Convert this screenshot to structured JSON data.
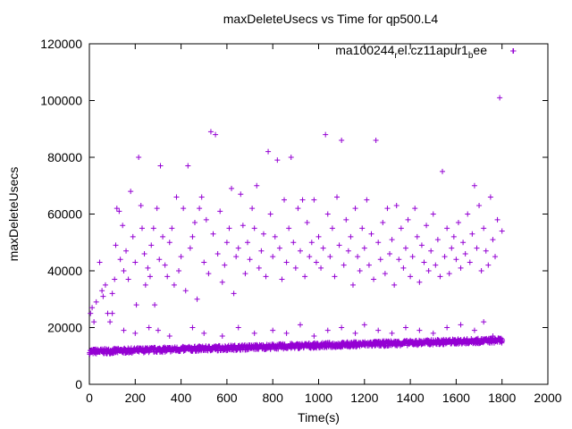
{
  "chart_data": {
    "type": "scatter",
    "title": "maxDeleteUsecs vs Time for qp500.L4",
    "xlabel": "Time(s)",
    "ylabel": "maxDeleteUsecs",
    "xlim": [
      0,
      2000
    ],
    "ylim": [
      0,
      120000
    ],
    "x_ticks": [
      "0",
      "200",
      "400",
      "600",
      "800",
      "1000",
      "1200",
      "1400",
      "1600",
      "1800",
      "2000"
    ],
    "y_ticks": [
      "0",
      "20000",
      "40000",
      "60000",
      "80000",
      "100000",
      "120000"
    ],
    "grid": false,
    "legend_position": "top-right",
    "legend_label": {
      "main": "ma100244",
      "sub1": "r",
      "mid": "el.cz11apur1",
      "sub2": "b",
      "end": "ee"
    },
    "marker": "plus",
    "color": "#9400d3",
    "baseline_band": {
      "description_x": [
        0,
        1800
      ],
      "y_start": 11500,
      "y_end": 15500
    },
    "outliers": [
      [
        5,
        25000
      ],
      [
        12,
        27000
      ],
      [
        20,
        22000
      ],
      [
        30,
        29000
      ],
      [
        45,
        43000
      ],
      [
        55,
        33000
      ],
      [
        60,
        31000
      ],
      [
        70,
        35000
      ],
      [
        80,
        25000
      ],
      [
        90,
        22000
      ],
      [
        100,
        32000
      ],
      [
        110,
        37000
      ],
      [
        115,
        49000
      ],
      [
        120,
        62000
      ],
      [
        130,
        61000
      ],
      [
        135,
        44000
      ],
      [
        145,
        56000
      ],
      [
        150,
        40000
      ],
      [
        160,
        47000
      ],
      [
        170,
        37000
      ],
      [
        180,
        68000
      ],
      [
        190,
        52000
      ],
      [
        200,
        43000
      ],
      [
        205,
        28000
      ],
      [
        215,
        80000
      ],
      [
        225,
        63000
      ],
      [
        230,
        55000
      ],
      [
        240,
        46000
      ],
      [
        245,
        35000
      ],
      [
        255,
        41000
      ],
      [
        265,
        38000
      ],
      [
        270,
        49000
      ],
      [
        280,
        55000
      ],
      [
        285,
        28000
      ],
      [
        295,
        62000
      ],
      [
        305,
        44000
      ],
      [
        310,
        77000
      ],
      [
        320,
        52000
      ],
      [
        330,
        42000
      ],
      [
        340,
        38000
      ],
      [
        350,
        50000
      ],
      [
        360,
        55000
      ],
      [
        370,
        35000
      ],
      [
        380,
        66000
      ],
      [
        390,
        40000
      ],
      [
        400,
        45000
      ],
      [
        410,
        62000
      ],
      [
        420,
        33000
      ],
      [
        430,
        77000
      ],
      [
        440,
        48000
      ],
      [
        450,
        52000
      ],
      [
        460,
        57000
      ],
      [
        470,
        30000
      ],
      [
        480,
        62000
      ],
      [
        490,
        66000
      ],
      [
        500,
        43000
      ],
      [
        510,
        58000
      ],
      [
        520,
        39000
      ],
      [
        530,
        89000
      ],
      [
        540,
        53000
      ],
      [
        550,
        88000
      ],
      [
        560,
        46000
      ],
      [
        570,
        61000
      ],
      [
        580,
        36000
      ],
      [
        590,
        42000
      ],
      [
        600,
        50000
      ],
      [
        610,
        55000
      ],
      [
        620,
        69000
      ],
      [
        630,
        32000
      ],
      [
        640,
        45000
      ],
      [
        650,
        48000
      ],
      [
        660,
        67000
      ],
      [
        670,
        56000
      ],
      [
        680,
        39000
      ],
      [
        690,
        50000
      ],
      [
        700,
        44000
      ],
      [
        710,
        62000
      ],
      [
        720,
        55000
      ],
      [
        730,
        70000
      ],
      [
        740,
        41000
      ],
      [
        750,
        47000
      ],
      [
        760,
        53000
      ],
      [
        770,
        38000
      ],
      [
        780,
        82000
      ],
      [
        790,
        60000
      ],
      [
        800,
        45000
      ],
      [
        810,
        52000
      ],
      [
        820,
        79000
      ],
      [
        830,
        48000
      ],
      [
        840,
        37000
      ],
      [
        850,
        65000
      ],
      [
        860,
        43000
      ],
      [
        870,
        55000
      ],
      [
        880,
        80000
      ],
      [
        890,
        50000
      ],
      [
        900,
        41000
      ],
      [
        910,
        62000
      ],
      [
        920,
        47000
      ],
      [
        930,
        65000
      ],
      [
        940,
        38000
      ],
      [
        950,
        57000
      ],
      [
        960,
        45000
      ],
      [
        970,
        50000
      ],
      [
        980,
        65000
      ],
      [
        990,
        43000
      ],
      [
        1000,
        52000
      ],
      [
        1010,
        41000
      ],
      [
        1020,
        48000
      ],
      [
        1030,
        88000
      ],
      [
        1040,
        60000
      ],
      [
        1050,
        45000
      ],
      [
        1060,
        55000
      ],
      [
        1070,
        38000
      ],
      [
        1080,
        66000
      ],
      [
        1090,
        49000
      ],
      [
        1100,
        86000
      ],
      [
        1110,
        42000
      ],
      [
        1120,
        58000
      ],
      [
        1130,
        47000
      ],
      [
        1140,
        52000
      ],
      [
        1150,
        35000
      ],
      [
        1160,
        62000
      ],
      [
        1170,
        45000
      ],
      [
        1180,
        40000
      ],
      [
        1190,
        55000
      ],
      [
        1200,
        48000
      ],
      [
        1210,
        65000
      ],
      [
        1220,
        42000
      ],
      [
        1230,
        53000
      ],
      [
        1240,
        37000
      ],
      [
        1250,
        86000
      ],
      [
        1260,
        50000
      ],
      [
        1270,
        44000
      ],
      [
        1280,
        57000
      ],
      [
        1290,
        39000
      ],
      [
        1300,
        62000
      ],
      [
        1310,
        46000
      ],
      [
        1320,
        51000
      ],
      [
        1330,
        35000
      ],
      [
        1340,
        63000
      ],
      [
        1350,
        44000
      ],
      [
        1360,
        55000
      ],
      [
        1370,
        41000
      ],
      [
        1380,
        48000
      ],
      [
        1390,
        58000
      ],
      [
        1400,
        38000
      ],
      [
        1410,
        45000
      ],
      [
        1420,
        62000
      ],
      [
        1430,
        52000
      ],
      [
        1440,
        36000
      ],
      [
        1450,
        49000
      ],
      [
        1460,
        43000
      ],
      [
        1470,
        56000
      ],
      [
        1480,
        40000
      ],
      [
        1490,
        47000
      ],
      [
        1500,
        60000
      ],
      [
        1510,
        42000
      ],
      [
        1520,
        51000
      ],
      [
        1530,
        38000
      ],
      [
        1540,
        75000
      ],
      [
        1550,
        45000
      ],
      [
        1560,
        55000
      ],
      [
        1570,
        39000
      ],
      [
        1580,
        48000
      ],
      [
        1590,
        52000
      ],
      [
        1600,
        44000
      ],
      [
        1610,
        57000
      ],
      [
        1620,
        41000
      ],
      [
        1630,
        50000
      ],
      [
        1640,
        46000
      ],
      [
        1650,
        60000
      ],
      [
        1660,
        43000
      ],
      [
        1670,
        53000
      ],
      [
        1680,
        70000
      ],
      [
        1690,
        48000
      ],
      [
        1700,
        63000
      ],
      [
        1710,
        40000
      ],
      [
        1720,
        55000
      ],
      [
        1730,
        47000
      ],
      [
        1740,
        42000
      ],
      [
        1750,
        66000
      ],
      [
        1760,
        51000
      ],
      [
        1770,
        45000
      ],
      [
        1780,
        58000
      ],
      [
        1790,
        101000
      ],
      [
        1800,
        54000
      ],
      [
        1850,
        117500
      ]
    ],
    "low_outliers": [
      [
        100,
        25000
      ],
      [
        150,
        19000
      ],
      [
        200,
        18000
      ],
      [
        260,
        20000
      ],
      [
        300,
        19000
      ],
      [
        350,
        17000
      ],
      [
        450,
        20000
      ],
      [
        500,
        18000
      ],
      [
        580,
        17000
      ],
      [
        650,
        20000
      ],
      [
        720,
        18000
      ],
      [
        800,
        19000
      ],
      [
        860,
        18000
      ],
      [
        920,
        21000
      ],
      [
        980,
        17000
      ],
      [
        1040,
        19000
      ],
      [
        1100,
        20000
      ],
      [
        1160,
        18000
      ],
      [
        1200,
        21000
      ],
      [
        1260,
        19000
      ],
      [
        1320,
        18000
      ],
      [
        1380,
        20000
      ],
      [
        1440,
        19000
      ],
      [
        1500,
        18000
      ],
      [
        1560,
        20000
      ],
      [
        1620,
        21000
      ],
      [
        1680,
        19000
      ],
      [
        1720,
        22000
      ],
      [
        1760,
        17000
      ]
    ]
  }
}
